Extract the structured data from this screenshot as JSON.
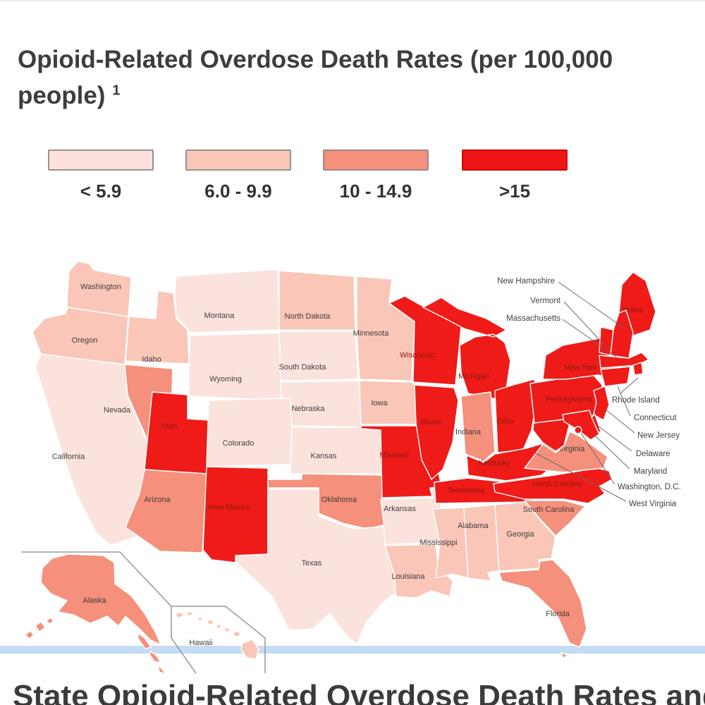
{
  "page": {
    "title": "Opioid-Related Overdose Death Rates (per 100,000 people)",
    "title_superscript": "1",
    "bottom_heading": "State Opioid-Related Overdose Death Rates and Op"
  },
  "legend": {
    "items": [
      {
        "label": "< 5.9",
        "color": "#fbe2dd",
        "border": "#9b9189"
      },
      {
        "label": "6.0 - 9.9",
        "color": "#f9c6b8",
        "border": "#9b9189"
      },
      {
        "label": "10 - 14.9",
        "color": "#f4907b",
        "border": "#9b8a85"
      },
      {
        "label": ">15",
        "color": "#ee1414",
        "border": "#c40e0e"
      }
    ]
  },
  "map": {
    "category_fills": {
      "< 5.9": "#fbe2dd",
      "6.0 - 9.9": "#f9c6b8",
      "10 - 14.9": "#f4907b",
      ">15": "#ee1b18"
    },
    "label_colors": {
      "light": "#433c3c",
      "red": "#8c1a12"
    },
    "states": [
      {
        "id": "wa",
        "name": "Washington",
        "category": "6.0 - 9.9"
      },
      {
        "id": "or",
        "name": "Oregon",
        "category": "6.0 - 9.9"
      },
      {
        "id": "ca",
        "name": "California",
        "category": "< 5.9"
      },
      {
        "id": "nv",
        "name": "Nevada",
        "category": "10 - 14.9"
      },
      {
        "id": "id",
        "name": "Idaho",
        "category": "6.0 - 9.9"
      },
      {
        "id": "mt",
        "name": "Montana",
        "category": "< 5.9"
      },
      {
        "id": "wy",
        "name": "Wyoming",
        "category": "< 5.9"
      },
      {
        "id": "ut",
        "name": "Utah",
        "category": ">15"
      },
      {
        "id": "co",
        "name": "Colorado",
        "category": "< 5.9"
      },
      {
        "id": "az",
        "name": "Arizona",
        "category": "10 - 14.9"
      },
      {
        "id": "nm",
        "name": "New Mexico",
        "category": ">15"
      },
      {
        "id": "nd",
        "name": "North Dakota",
        "category": "6.0 - 9.9"
      },
      {
        "id": "sd",
        "name": "South Dakota",
        "category": "< 5.9"
      },
      {
        "id": "ne",
        "name": "Nebraska",
        "category": "< 5.9"
      },
      {
        "id": "ks",
        "name": "Kansas",
        "category": "< 5.9"
      },
      {
        "id": "ok",
        "name": "Oklahoma",
        "category": "10 - 14.9"
      },
      {
        "id": "tx",
        "name": "Texas",
        "category": "< 5.9"
      },
      {
        "id": "mn",
        "name": "Minnesota",
        "category": "6.0 - 9.9"
      },
      {
        "id": "ia",
        "name": "Iowa",
        "category": "6.0 - 9.9"
      },
      {
        "id": "mo",
        "name": "Missouri",
        "category": ">15"
      },
      {
        "id": "ar",
        "name": "Arkansas",
        "category": "< 5.9"
      },
      {
        "id": "la",
        "name": "Louisiana",
        "category": "6.0 - 9.9"
      },
      {
        "id": "wi",
        "name": "Wisconsin",
        "category": ">15"
      },
      {
        "id": "il",
        "name": "Illinois",
        "category": ">15"
      },
      {
        "id": "mi",
        "name": "Michigan",
        "category": ">15"
      },
      {
        "id": "in",
        "name": "Indiana",
        "category": "10 - 14.9"
      },
      {
        "id": "oh",
        "name": "Ohio",
        "category": ">15"
      },
      {
        "id": "ky",
        "name": "Kentucky",
        "category": ">15"
      },
      {
        "id": "tn",
        "name": "Tennessee",
        "category": ">15"
      },
      {
        "id": "ms",
        "name": "Mississippi",
        "category": "6.0 - 9.9"
      },
      {
        "id": "al",
        "name": "Alabama",
        "category": "6.0 - 9.9"
      },
      {
        "id": "ga",
        "name": "Georgia",
        "category": "6.0 - 9.9"
      },
      {
        "id": "fl",
        "name": "Florida",
        "category": "10 - 14.9"
      },
      {
        "id": "sc",
        "name": "South Carolina",
        "category": "10 - 14.9"
      },
      {
        "id": "nc",
        "name": "North Carolina",
        "category": ">15"
      },
      {
        "id": "va",
        "name": "Virginia",
        "category": "10 - 14.9"
      },
      {
        "id": "wv",
        "name": "West Virginia",
        "category": ">15"
      },
      {
        "id": "pa",
        "name": "Pennsylvania",
        "category": ">15"
      },
      {
        "id": "ny",
        "name": "New York",
        "category": ">15"
      },
      {
        "id": "me",
        "name": "Maine",
        "category": ">15"
      },
      {
        "id": "vt",
        "name": "Vermont",
        "category": ">15"
      },
      {
        "id": "nh",
        "name": "New Hampshire",
        "category": ">15"
      },
      {
        "id": "ma",
        "name": "Massachusetts",
        "category": ">15"
      },
      {
        "id": "ri",
        "name": "Rhode Island",
        "category": ">15"
      },
      {
        "id": "ct",
        "name": "Connecticut",
        "category": ">15"
      },
      {
        "id": "nj",
        "name": "New Jersey",
        "category": ">15"
      },
      {
        "id": "de",
        "name": "Delaware",
        "category": ">15"
      },
      {
        "id": "md",
        "name": "Maryland",
        "category": ">15"
      },
      {
        "id": "dc",
        "name": "Washington, D.C.",
        "category": ">15"
      },
      {
        "id": "ak",
        "name": "Alaska",
        "category": "10 - 14.9"
      },
      {
        "id": "hi",
        "name": "Hawaii",
        "category": "6.0 - 9.9"
      }
    ],
    "callouts": [
      {
        "id": "nh",
        "label": "New Hampshire"
      },
      {
        "id": "vt",
        "label": "Vermont"
      },
      {
        "id": "ma",
        "label": "Massachusetts"
      },
      {
        "id": "ri",
        "label": "Rhode Island"
      },
      {
        "id": "ct",
        "label": "Connecticut"
      },
      {
        "id": "nj",
        "label": "New Jersey"
      },
      {
        "id": "de",
        "label": "Delaware"
      },
      {
        "id": "md",
        "label": "Maryland"
      },
      {
        "id": "dc",
        "label": "Washington, D.C."
      },
      {
        "id": "wv",
        "label": "West Virginia"
      }
    ]
  }
}
